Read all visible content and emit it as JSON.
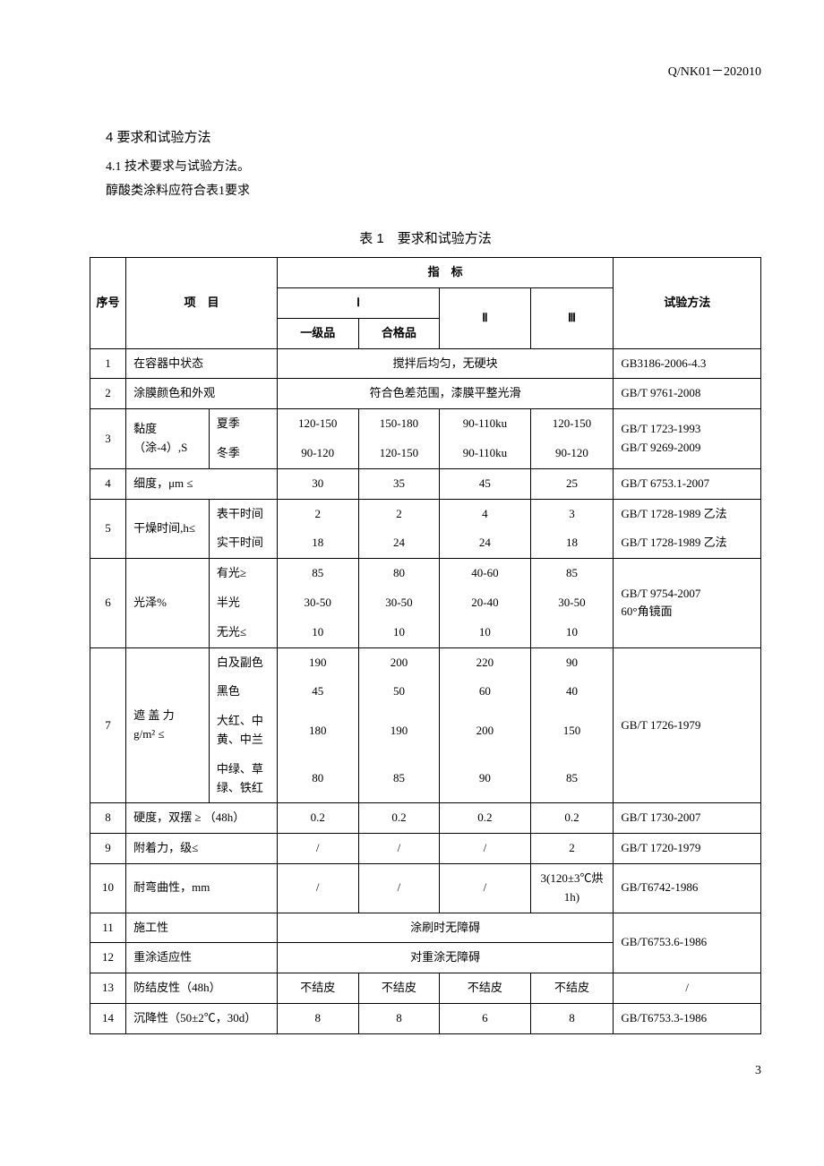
{
  "doc_id": "Q/NK01－202010",
  "section_number": "4",
  "section_title": "要求和试验方法",
  "subsection": "4.1 技术要求与试验方法。",
  "intro_line": "醇酸类涂料应符合表1要求",
  "table_caption": "表 1　要求和试验方法",
  "page_number": "3",
  "columns": {
    "seq": "序号",
    "item": "项　目",
    "indicator": "指　标",
    "method": "试验方法",
    "col_I": "Ⅰ",
    "col_II": "Ⅱ",
    "col_III": "Ⅲ",
    "grade1": "一级品",
    "grade_ok": "合格品"
  },
  "col_widths": {
    "seq": "38px",
    "item_main": "88px",
    "item_sub": "72px",
    "v1": "86px",
    "v2": "86px",
    "v3": "96px",
    "v4": "88px",
    "method": "156px"
  },
  "rows": {
    "r1": {
      "seq": "1",
      "item": "在容器中状态",
      "span_val": "搅拌后均匀，无硬块",
      "method": "GB3186-2006-4.3"
    },
    "r2": {
      "seq": "2",
      "item": "涂膜颜色和外观",
      "span_val": "符合色差范围，漆膜平整光滑",
      "method": "GB/T 9761-2008"
    },
    "r3": {
      "seq": "3",
      "item": "黏度（涂-4）,S",
      "sub_a": "夏季",
      "a": [
        "120-150",
        "150-180",
        "90-110ku",
        "120-150"
      ],
      "sub_b": "冬季",
      "b": [
        "90-120",
        "120-150",
        "90-110ku",
        "90-120"
      ],
      "method": "GB/T 1723-1993\nGB/T 9269-2009"
    },
    "r4": {
      "seq": "4",
      "item": "细度，μm ≤",
      "v": [
        "30",
        "35",
        "45",
        "25"
      ],
      "method": "GB/T 6753.1-2007"
    },
    "r5": {
      "seq": "5",
      "item": "干燥时间,h≤",
      "sub_a": "表干时间",
      "a": [
        "2",
        "2",
        "4",
        "3"
      ],
      "method_a": "GB/T 1728-1989 乙法",
      "sub_b": "实干时间",
      "b": [
        "18",
        "24",
        "24",
        "18"
      ],
      "method_b": "GB/T 1728-1989 乙法"
    },
    "r6": {
      "seq": "6",
      "item": "光泽%",
      "sub_a": "有光≥",
      "a": [
        "85",
        "80",
        "40-60",
        "85"
      ],
      "sub_b": "半光",
      "b": [
        "30-50",
        "30-50",
        "20-40",
        "30-50"
      ],
      "sub_c": "无光≤",
      "c": [
        "10",
        "10",
        "10",
        "10"
      ],
      "method": "GB/T 9754-2007\n 60°角镜面"
    },
    "r7": {
      "seq": "7",
      "item": "遮 盖 力\ng/m² ≤",
      "sub_a": "白及副色",
      "a": [
        "190",
        "200",
        "220",
        "90"
      ],
      "sub_b": "黑色",
      "b": [
        "45",
        "50",
        "60",
        "40"
      ],
      "sub_c": "大红、中黄、中兰",
      "c": [
        "180",
        "190",
        "200",
        "150"
      ],
      "sub_d": "中绿、草绿、铁红",
      "d": [
        "80",
        "85",
        "90",
        "85"
      ],
      "method": "GB/T 1726-1979"
    },
    "r8": {
      "seq": "8",
      "item": "硬度，双摆 ≥ （48h）",
      "v": [
        "0.2",
        "0.2",
        "0.2",
        "0.2"
      ],
      "method": "GB/T 1730-2007"
    },
    "r9": {
      "seq": "9",
      "item": "附着力，级≤",
      "v": [
        "/",
        "/",
        "/",
        "2"
      ],
      "method": "GB/T 1720-1979"
    },
    "r10": {
      "seq": "10",
      "item": "耐弯曲性，mm",
      "v": [
        "/",
        "/",
        "/",
        "3(120±3℃烘 1h)"
      ],
      "method": "GB/T6742-1986"
    },
    "r11": {
      "seq": "11",
      "item": "施工性",
      "span_val": "涂刷时无障碍",
      "method": "GB/T6753.6-1986"
    },
    "r12": {
      "seq": "12",
      "item": "重涂适应性",
      "span_val": "对重涂无障碍"
    },
    "r13": {
      "seq": "13",
      "item": "防结皮性（48h）",
      "v": [
        "不结皮",
        "不结皮",
        "不结皮",
        "不结皮"
      ],
      "method": "/"
    },
    "r14": {
      "seq": "14",
      "item": "沉降性（50±2℃，30d）",
      "v": [
        "8",
        "8",
        "6",
        "8"
      ],
      "method": "GB/T6753.3-1986"
    }
  }
}
